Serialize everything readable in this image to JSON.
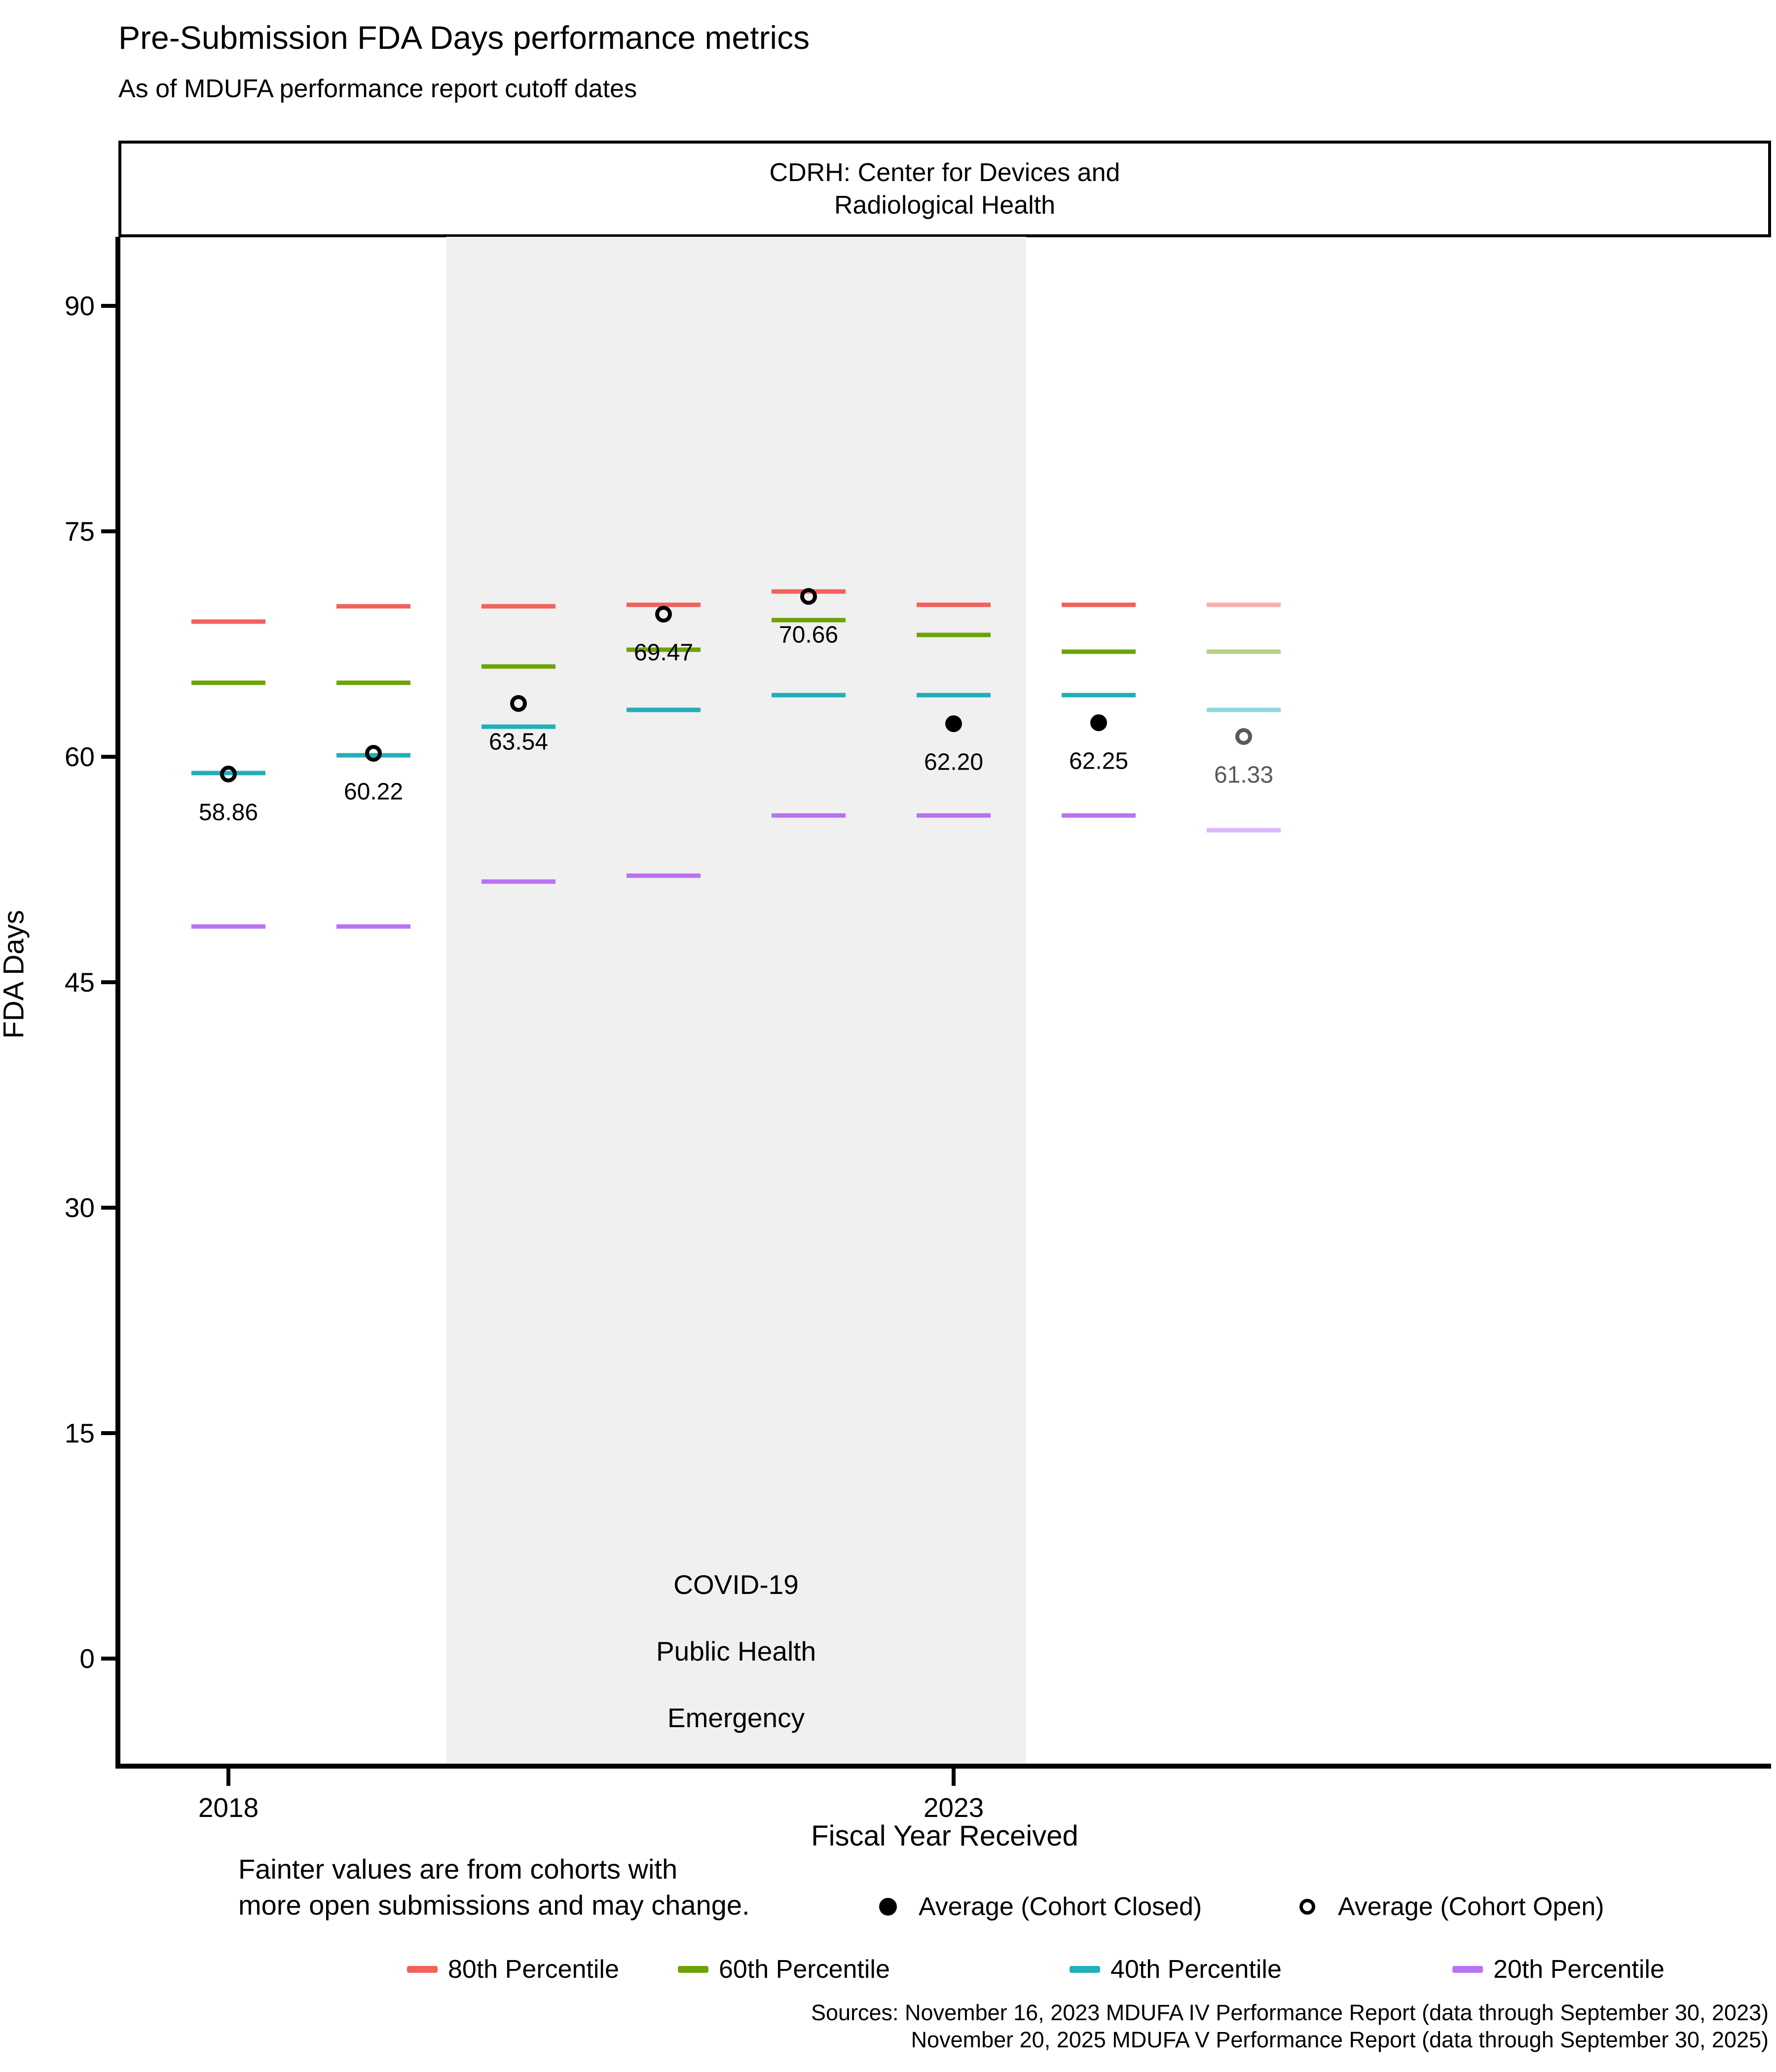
{
  "title": "Pre-Submission FDA Days performance metrics",
  "subtitle": "As of MDUFA performance report cutoff dates",
  "facet": {
    "line1": "CDRH: Center for Devices and",
    "line2": "Radiological Health"
  },
  "chart_data": {
    "type": "scatter",
    "title": "Pre-Submission FDA Days performance metrics",
    "subtitle": "As of MDUFA performance report cutoff dates",
    "facet_label": "CDRH: Center for Devices and Radiological Health",
    "xlabel": "Fiscal Year Received",
    "ylabel": "FDA Days",
    "x": [
      2018,
      2019,
      2020,
      2021,
      2022,
      2023,
      2024,
      2025
    ],
    "x_ticks": [
      {
        "year": 2018,
        "label": "2018"
      },
      {
        "year": 2023,
        "label": "2023"
      }
    ],
    "yticks": [
      0,
      15,
      30,
      45,
      60,
      75,
      90
    ],
    "ylim": [
      -7,
      94.5
    ],
    "grid": false,
    "legend_position": "bottom",
    "series": [
      {
        "name": "80th Percentile",
        "color": "#F2615C",
        "values": [
          69.0,
          70.0,
          70.0,
          70.1,
          71.0,
          70.1,
          70.1,
          70.1
        ]
      },
      {
        "name": "60th Percentile",
        "color": "#6DA306",
        "values": [
          64.9,
          64.9,
          66.0,
          67.1,
          69.1,
          68.1,
          67.0,
          67.0
        ]
      },
      {
        "name": "40th Percentile",
        "color": "#21AFBA",
        "values": [
          58.9,
          60.1,
          62.0,
          63.1,
          64.1,
          64.1,
          64.1,
          63.1
        ]
      },
      {
        "name": "20th Percentile",
        "color": "#B873F3",
        "values": [
          48.7,
          48.7,
          51.7,
          52.1,
          56.1,
          56.1,
          56.1,
          55.1
        ]
      }
    ],
    "averages": [
      {
        "year": 2018,
        "value": 58.86,
        "label": "58.86",
        "cohort": "open"
      },
      {
        "year": 2019,
        "value": 60.22,
        "label": "60.22",
        "cohort": "open"
      },
      {
        "year": 2020,
        "value": 63.54,
        "label": "63.54",
        "cohort": "open"
      },
      {
        "year": 2021,
        "value": 69.47,
        "label": "69.47",
        "cohort": "open"
      },
      {
        "year": 2022,
        "value": 70.66,
        "label": "70.66",
        "cohort": "open"
      },
      {
        "year": 2023,
        "value": 62.2,
        "label": "62.20",
        "cohort": "closed"
      },
      {
        "year": 2024,
        "value": 62.25,
        "label": "62.25",
        "cohort": "closed"
      },
      {
        "year": 2025,
        "value": 61.33,
        "label": "61.33",
        "cohort": "open",
        "faint": true
      }
    ],
    "faint_years": [
      2025
    ],
    "covid_band": {
      "x_start": 2019.5,
      "x_end": 2023.5,
      "color": "#F0F0F0",
      "label_lines": [
        "COVID-19",
        "Public Health",
        "Emergency"
      ]
    }
  },
  "legend": {
    "note_lines": [
      "Fainter values are from cohorts with",
      "more open submissions and may change."
    ],
    "average_closed_label": "Average (Cohort Closed)",
    "average_open_label": "Average (Cohort Open)",
    "percentiles": [
      {
        "label": "80th Percentile",
        "color": "#F2615C"
      },
      {
        "label": "60th Percentile",
        "color": "#6DA306"
      },
      {
        "label": "40th Percentile",
        "color": "#21AFBA"
      },
      {
        "label": "20th Percentile",
        "color": "#B873F3"
      }
    ],
    "faint_color": "#595959"
  },
  "caption": {
    "sources": [
      "Sources: November 16, 2023 MDUFA IV Performance Report (data through September 30, 2023)",
      "November 20, 2025 MDUFA V Performance Report (data through September 30, 2025)"
    ]
  }
}
